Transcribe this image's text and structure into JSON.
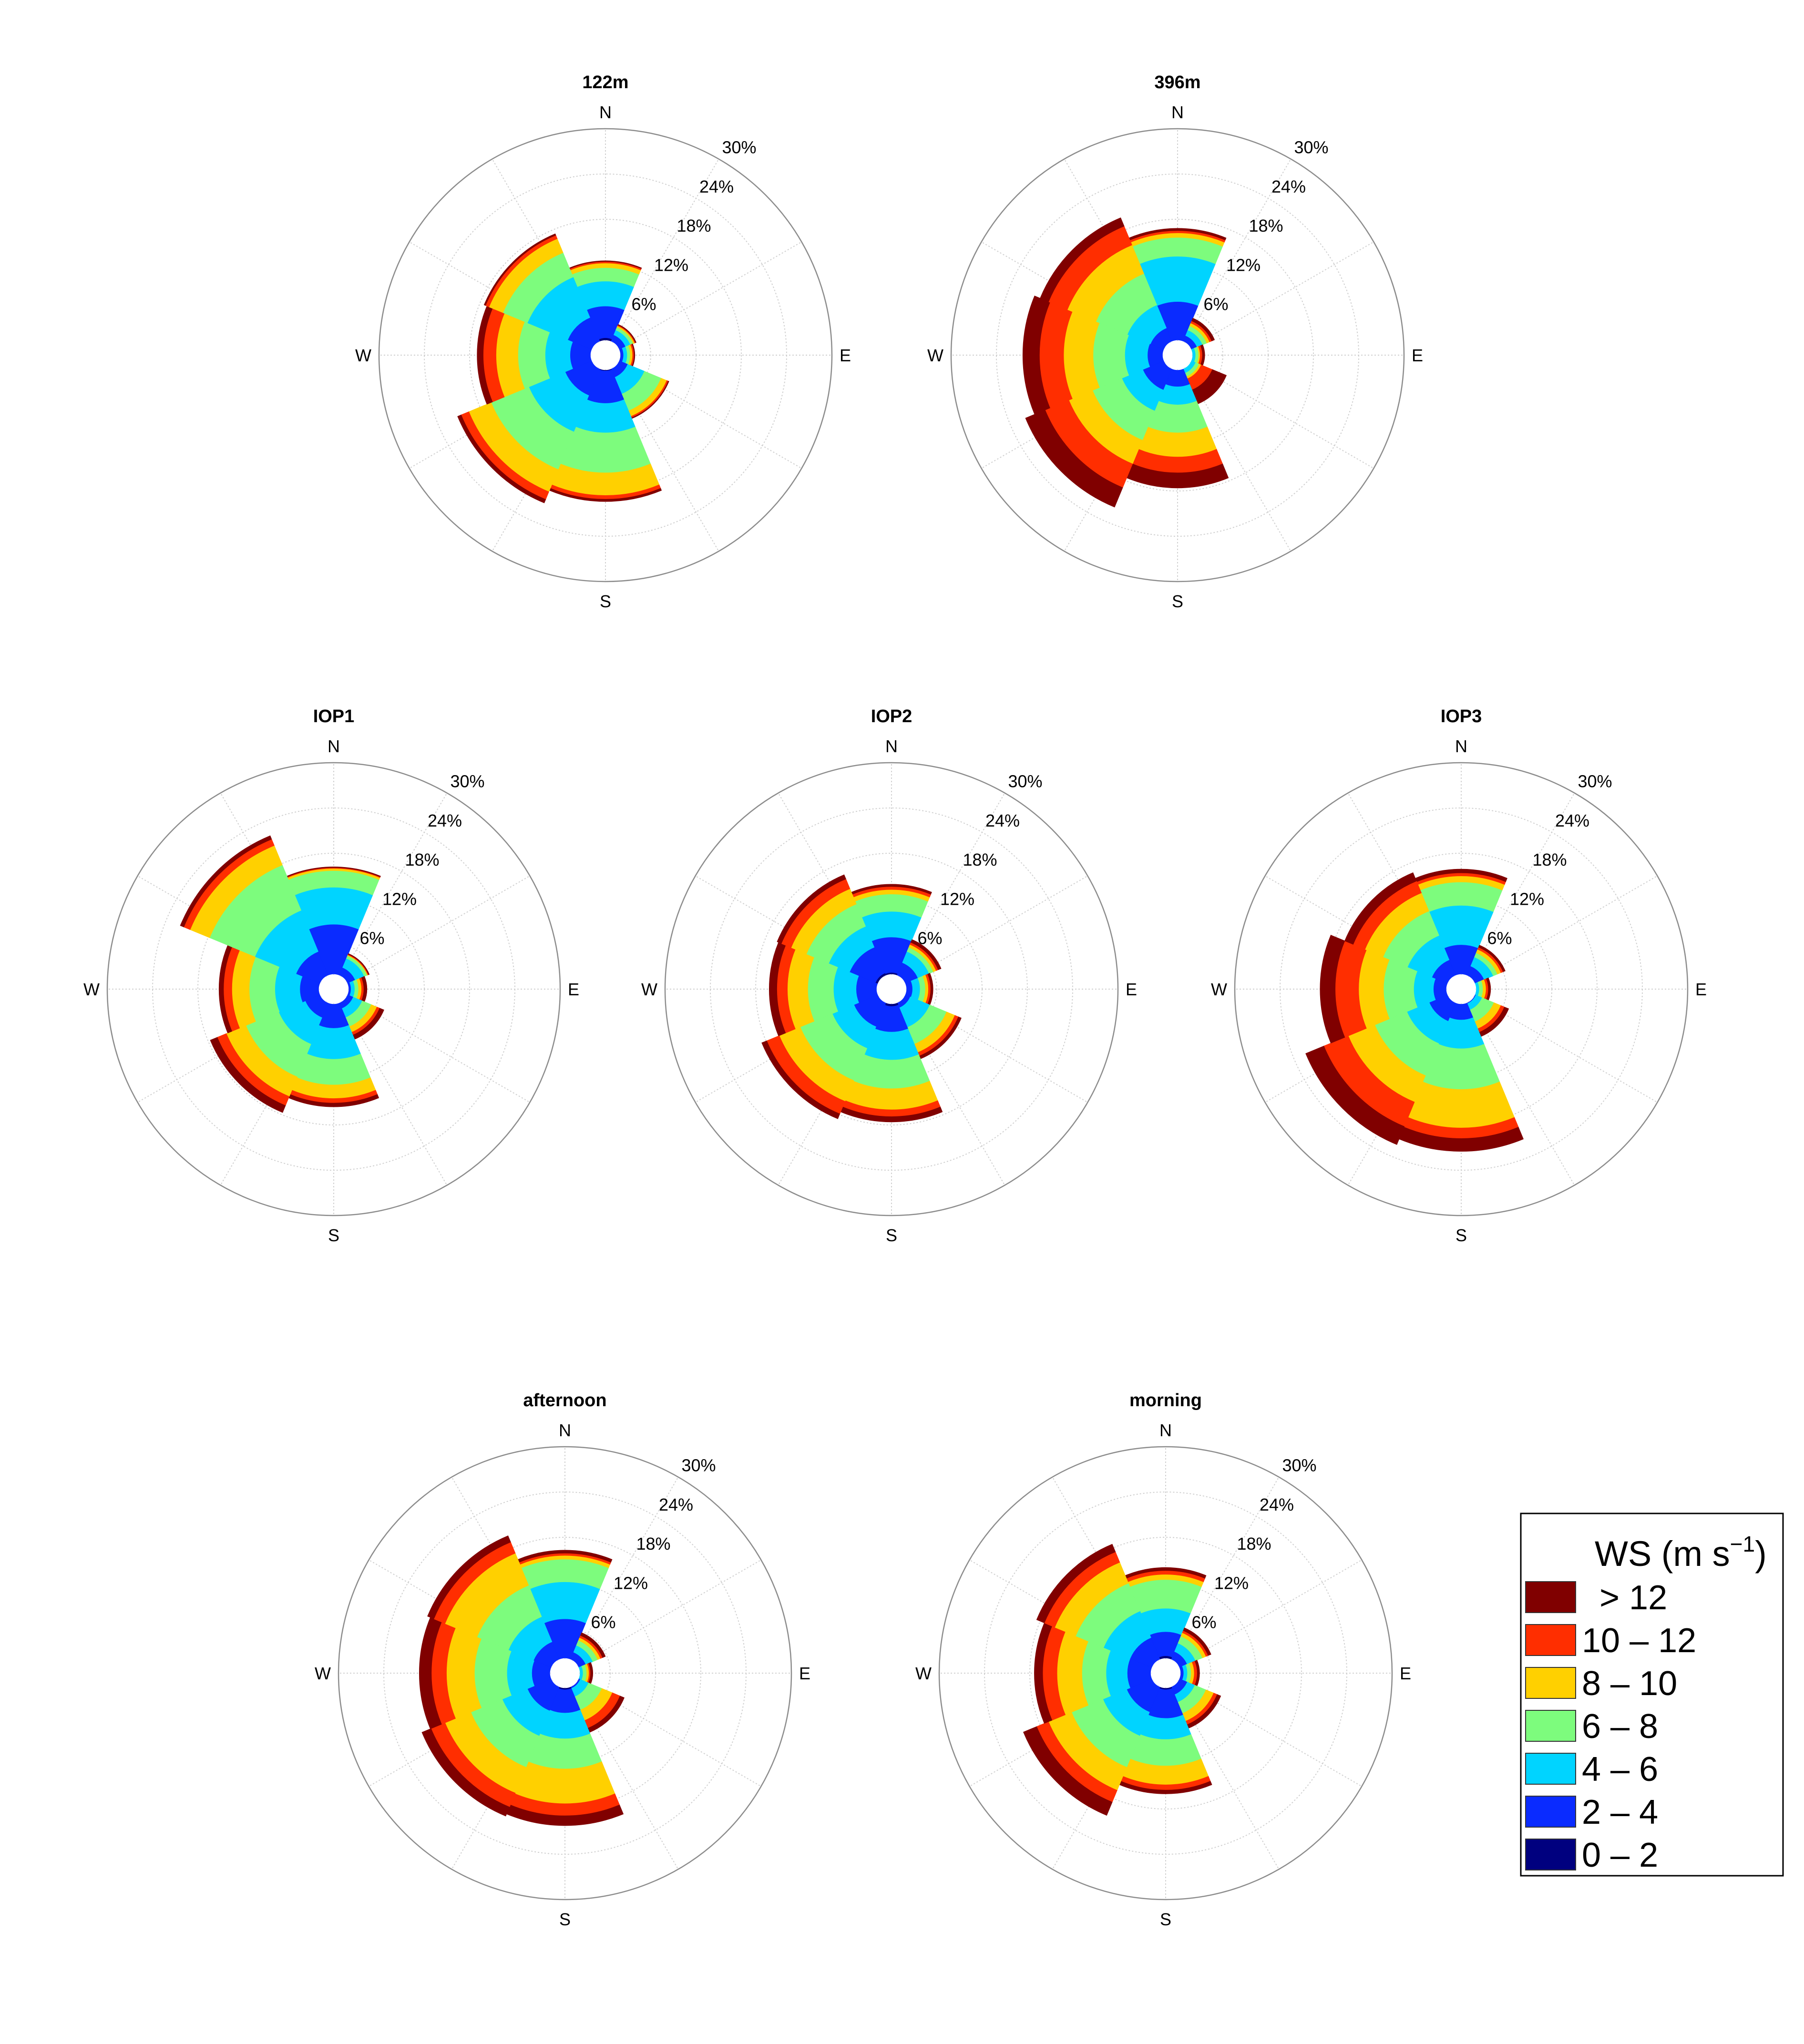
{
  "chart_data": {
    "type": "wind-rose",
    "ring_labels": [
      "6%",
      "12%",
      "18%",
      "24%",
      "30%"
    ],
    "ring_values": [
      6,
      12,
      18,
      24,
      30
    ],
    "r_max": 30,
    "hole": 2,
    "directions": [
      "N",
      "NE",
      "E",
      "SE",
      "S",
      "SW",
      "W",
      "NW"
    ],
    "cardinal_labels": {
      "N": "N",
      "E": "E",
      "S": "S",
      "W": "W"
    },
    "bins": [
      "0 – 2",
      "2 – 4",
      "4 – 6",
      "6 – 8",
      "8 – 10",
      "10 – 12",
      "> 12"
    ],
    "bin_colors": [
      "#00007F",
      "#0A2BFF",
      "#00D4FF",
      "#7DFC7D",
      "#FFD000",
      "#FF2E00",
      "#800000"
    ],
    "legend": {
      "title": "WS (m s",
      "title_exp": "−1",
      "title_close": ")",
      "labels": [
        "> 12",
        "10 – 12",
        "8 – 10",
        "6 – 8",
        "4 – 6",
        "2 – 4",
        "0 – 2"
      ]
    },
    "panels": [
      {
        "title": "122m",
        "cumulative": [
          [
            2.3,
            6.5,
            9.8,
            11.6,
            12.2,
            12.4,
            12.5
          ],
          [
            1.6,
            2.9,
            3.6,
            4.0,
            4.2,
            4.3,
            4.4
          ],
          [
            1.5,
            2.4,
            2.9,
            3.3,
            3.6,
            3.8,
            3.9
          ],
          [
            1.6,
            3.2,
            5.6,
            8.0,
            8.8,
            9.0,
            9.1
          ],
          [
            2.1,
            6.4,
            10.3,
            15.6,
            18.6,
            19.1,
            19.4
          ],
          [
            2.0,
            5.8,
            11.0,
            16.4,
            19.6,
            20.7,
            21.2
          ],
          [
            1.9,
            4.7,
            8.0,
            11.6,
            14.5,
            16.2,
            17.0
          ],
          [
            1.9,
            5.4,
            11.2,
            14.7,
            16.7,
            17.2,
            17.4
          ]
        ]
      },
      {
        "title": "396m",
        "cumulative": [
          [
            1.8,
            7.1,
            13.1,
            15.6,
            16.2,
            16.5,
            16.8
          ],
          [
            1.6,
            2.8,
            3.6,
            4.2,
            4.6,
            4.9,
            5.3
          ],
          [
            1.3,
            1.9,
            2.4,
            2.8,
            3.0,
            3.3,
            3.6
          ],
          [
            1.5,
            2.0,
            2.6,
            3.1,
            3.4,
            5.0,
            7.0
          ],
          [
            1.9,
            4.2,
            6.6,
            10.3,
            13.5,
            15.6,
            17.6
          ],
          [
            2.0,
            5.0,
            8.0,
            12.2,
            15.6,
            19.0,
            21.8
          ],
          [
            1.6,
            4.0,
            7.0,
            11.2,
            15.1,
            18.3,
            20.5
          ],
          [
            1.6,
            3.9,
            7.2,
            11.7,
            15.8,
            18.5,
            19.7
          ]
        ]
      },
      {
        "title": "IOP1",
        "cumulative": [
          [
            1.8,
            8.6,
            13.5,
            15.7,
            16.0,
            16.1,
            16.2
          ],
          [
            1.5,
            3.1,
            4.4,
            4.8,
            4.9,
            5.0,
            5.1
          ],
          [
            1.4,
            2.3,
            2.8,
            3.3,
            3.7,
            4.0,
            4.4
          ],
          [
            1.5,
            2.8,
            4.1,
            5.4,
            6.2,
            6.6,
            7.2
          ],
          [
            2.0,
            5.2,
            9.3,
            12.7,
            14.5,
            15.1,
            15.6
          ],
          [
            1.9,
            4.1,
            7.9,
            12.6,
            15.4,
            16.7,
            17.7
          ],
          [
            1.7,
            4.5,
            7.8,
            11.2,
            13.5,
            14.6,
            15.2
          ],
          [
            1.8,
            5.4,
            11.3,
            17.8,
            20.6,
            21.5,
            22.0
          ]
        ]
      },
      {
        "title": "IOP2",
        "cumulative": [
          [
            2.2,
            6.9,
            10.3,
            12.6,
            13.2,
            13.6,
            13.9
          ],
          [
            1.6,
            3.8,
            5.4,
            6.0,
            6.4,
            6.7,
            7.1
          ],
          [
            1.6,
            2.8,
            3.8,
            4.5,
            4.9,
            5.2,
            5.5
          ],
          [
            1.5,
            2.7,
            5.5,
            7.9,
            9.1,
            9.6,
            10.0
          ],
          [
            2.3,
            5.7,
            9.4,
            13.2,
            16.0,
            16.9,
            17.6
          ],
          [
            2.0,
            5.4,
            8.5,
            13.1,
            16.1,
            17.9,
            18.6
          ],
          [
            1.8,
            4.7,
            7.7,
            11.1,
            13.8,
            15.2,
            16.2
          ],
          [
            2.3,
            6.0,
            9.0,
            12.2,
            14.4,
            15.8,
            16.4
          ]
        ]
      },
      {
        "title": "IOP3",
        "cumulative": [
          [
            1.6,
            5.9,
            11.1,
            14.2,
            15.0,
            15.4,
            15.9
          ],
          [
            1.5,
            3.3,
            4.6,
            5.2,
            5.7,
            6.0,
            6.3
          ],
          [
            1.4,
            1.9,
            2.4,
            2.9,
            3.3,
            3.6,
            3.9
          ],
          [
            1.4,
            2.1,
            3.0,
            4.7,
            5.7,
            6.2,
            6.8
          ],
          [
            1.8,
            4.1,
            7.9,
            13.3,
            18.4,
            19.8,
            21.5
          ],
          [
            2.0,
            4.6,
            7.8,
            12.4,
            16.2,
            19.7,
            22.3
          ],
          [
            1.6,
            3.7,
            6.3,
            10.3,
            13.6,
            16.7,
            18.7
          ],
          [
            1.6,
            4.2,
            7.7,
            11.2,
            13.8,
            15.5,
            16.7
          ]
        ]
      },
      {
        "title": "afternoon",
        "cumulative": [
          [
            1.8,
            7.2,
            12.1,
            15.1,
            15.6,
            15.9,
            16.3
          ],
          [
            1.5,
            3.0,
            4.0,
            4.7,
            5.1,
            5.4,
            5.8
          ],
          [
            1.3,
            1.9,
            2.4,
            2.9,
            3.2,
            3.4,
            3.7
          ],
          [
            1.5,
            2.2,
            3.4,
            5.3,
            6.8,
            7.9,
            8.5
          ],
          [
            2.2,
            5.3,
            8.7,
            12.7,
            17.3,
            18.9,
            20.2
          ],
          [
            2.0,
            5.4,
            9.0,
            13.5,
            17.2,
            19.2,
            20.5
          ],
          [
            1.6,
            4.4,
            7.7,
            12.0,
            15.7,
            17.7,
            19.3
          ],
          [
            1.7,
            4.5,
            8.1,
            12.6,
            17.2,
            18.8,
            19.7
          ]
        ]
      },
      {
        "title": "morning",
        "cumulative": [
          [
            2.3,
            5.5,
            8.6,
            12.4,
            13.1,
            13.6,
            14.0
          ],
          [
            1.8,
            3.1,
            4.3,
            5.3,
            5.8,
            6.1,
            6.5
          ],
          [
            1.5,
            2.4,
            2.9,
            3.4,
            3.8,
            4.2,
            4.5
          ],
          [
            1.8,
            3.1,
            4.2,
            5.8,
            6.9,
            7.4,
            7.9
          ],
          [
            2.2,
            6.0,
            8.8,
            12.3,
            14.8,
            15.5,
            16.0
          ],
          [
            2.0,
            5.6,
            9.0,
            13.5,
            16.8,
            18.5,
            20.4
          ],
          [
            1.8,
            5.1,
            7.9,
            11.1,
            14.4,
            16.3,
            17.4
          ],
          [
            2.0,
            5.1,
            8.9,
            12.9,
            15.9,
            17.4,
            18.5
          ]
        ]
      }
    ]
  }
}
